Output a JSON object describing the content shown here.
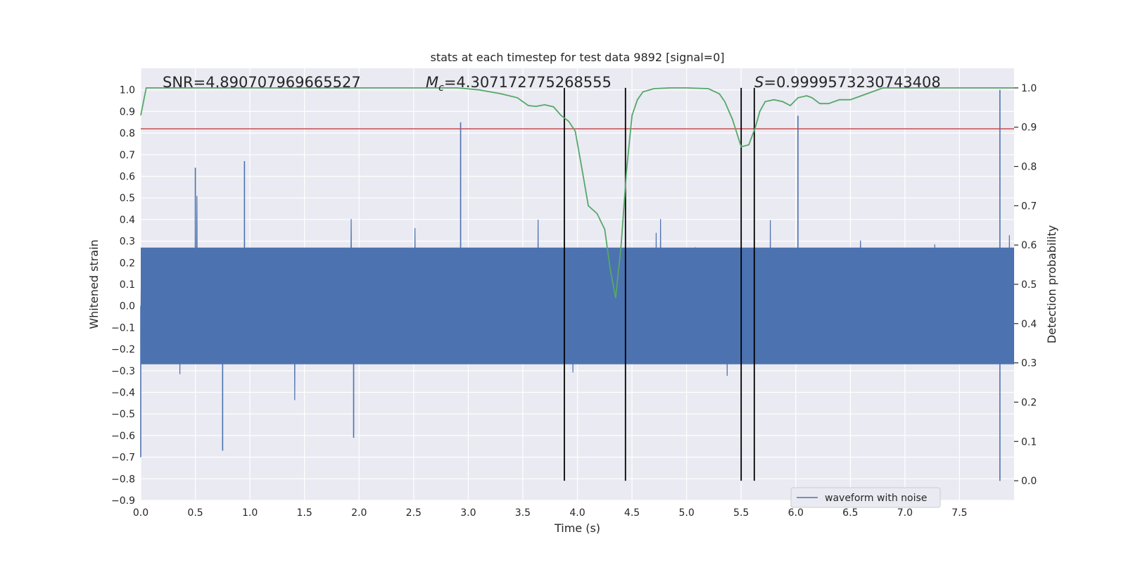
{
  "chart_data": {
    "type": "line",
    "title": "stats at each timestep for test data 9892 [signal=0]",
    "xlabel": "Time (s)",
    "ylabel": "Whitened strain",
    "y2label": "Detection probability",
    "xlim": [
      0.0,
      8.0
    ],
    "ylim": [
      -0.9,
      1.1
    ],
    "y2lim": [
      -0.05,
      1.05
    ],
    "xticks": [
      0.0,
      0.5,
      1.0,
      1.5,
      2.0,
      2.5,
      3.0,
      3.5,
      4.0,
      4.5,
      5.0,
      5.5,
      6.0,
      6.5,
      7.0,
      7.5
    ],
    "yticks": [
      -0.9,
      -0.8,
      -0.7,
      -0.6,
      -0.5,
      -0.4,
      -0.3,
      -0.2,
      -0.1,
      0.0,
      0.1,
      0.2,
      0.3,
      0.4,
      0.5,
      0.6,
      0.7,
      0.8,
      0.9,
      1.0
    ],
    "y2ticks": [
      0.0,
      0.1,
      0.2,
      0.3,
      0.4,
      0.5,
      0.6,
      0.7,
      0.8,
      0.9,
      1.0
    ],
    "grid": true,
    "legend": {
      "position": "lower-right",
      "entries": [
        "waveform with noise"
      ]
    },
    "annotations": {
      "snr": "SNR=4.890707969665527",
      "mc_symbol": "M",
      "mc_subscript": "c",
      "mc_value": "=4.307172775268555",
      "s_symbol": "S",
      "s_value": "=0.9999573230743408"
    },
    "series": [
      {
        "name": "waveform with noise",
        "axis": "left",
        "color": "#4c72b0",
        "description_envelope_peaks": [
          {
            "x": 0.0,
            "y": -0.7
          },
          {
            "x": 0.5,
            "y": 0.64
          },
          {
            "x": 0.95,
            "y": 0.67
          },
          {
            "x": 2.93,
            "y": 0.85
          },
          {
            "x": 6.02,
            "y": 0.88
          },
          {
            "x": 7.87,
            "y": 1.0
          },
          {
            "x": 7.87,
            "y": -0.81
          },
          {
            "x": 0.75,
            "y": -0.67
          },
          {
            "x": 1.95,
            "y": -0.61
          }
        ]
      },
      {
        "name": "",
        "axis": "right",
        "color": "#55a868",
        "x": [
          0.0,
          0.05,
          0.2,
          0.5,
          1.0,
          1.5,
          2.0,
          2.5,
          2.9,
          3.1,
          3.3,
          3.45,
          3.55,
          3.62,
          3.7,
          3.78,
          3.85,
          3.92,
          3.98,
          4.05,
          4.1,
          4.18,
          4.25,
          4.3,
          4.35,
          4.4,
          4.45,
          4.5,
          4.55,
          4.6,
          4.7,
          4.85,
          5.0,
          5.2,
          5.3,
          5.35,
          5.42,
          5.5,
          5.57,
          5.63,
          5.67,
          5.72,
          5.8,
          5.88,
          5.95,
          6.02,
          6.1,
          6.15,
          6.22,
          6.3,
          6.4,
          6.5,
          6.6,
          6.7,
          6.8,
          7.0,
          7.5,
          8.0
        ],
        "values": [
          0.93,
          1.0,
          1.0,
          1.0,
          1.0,
          1.0,
          1.0,
          1.0,
          1.0,
          0.995,
          0.985,
          0.975,
          0.955,
          0.953,
          0.957,
          0.952,
          0.93,
          0.915,
          0.89,
          0.78,
          0.7,
          0.68,
          0.64,
          0.54,
          0.465,
          0.6,
          0.79,
          0.93,
          0.97,
          0.99,
          0.998,
          1.0,
          1.0,
          0.998,
          0.985,
          0.965,
          0.92,
          0.85,
          0.855,
          0.9,
          0.94,
          0.965,
          0.97,
          0.965,
          0.955,
          0.975,
          0.98,
          0.975,
          0.96,
          0.96,
          0.97,
          0.97,
          0.98,
          0.99,
          1.0,
          1.0,
          1.0,
          1.0
        ]
      }
    ],
    "hlines": [
      {
        "axis": "left",
        "y": 0.82,
        "color": "#c44e52"
      }
    ],
    "vlines": [
      {
        "x": 3.88,
        "color": "#000000"
      },
      {
        "x": 4.44,
        "color": "#000000"
      },
      {
        "x": 5.5,
        "color": "#000000"
      },
      {
        "x": 5.62,
        "color": "#000000"
      }
    ]
  }
}
